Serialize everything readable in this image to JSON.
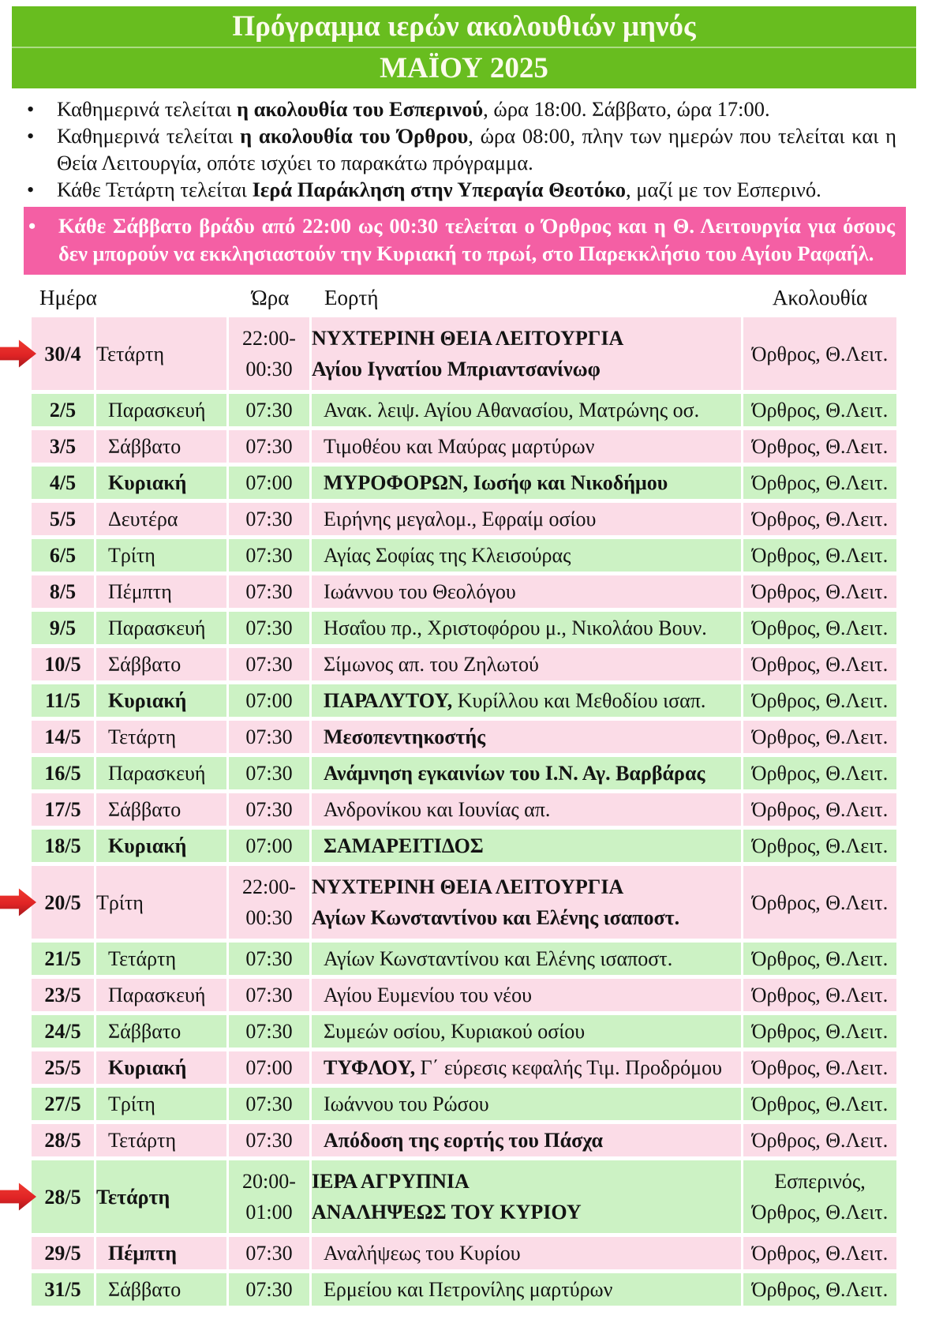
{
  "bullet_char": "•",
  "colors": {
    "header_green": "#68bd1f",
    "banner_pink": "#f45fa4",
    "row_pink": "#fbdce7",
    "row_green": "#ccf2c4",
    "arrow_red": "#e02425"
  },
  "title": {
    "line1": "Πρόγραμμα ιερών ακολουθιών μηνός",
    "line2": "ΜΑΪΟΥ 2025"
  },
  "notes": [
    {
      "style": "plain",
      "segments": [
        {
          "t": "Καθημερινά τελείται ",
          "b": false
        },
        {
          "t": "η ακολουθία του Εσπερινού",
          "b": true
        },
        {
          "t": ", ώρα 18:00. Σάββατο, ώρα 17:00.",
          "b": false
        }
      ]
    },
    {
      "style": "plain",
      "segments": [
        {
          "t": "Καθημερινά τελείται ",
          "b": false
        },
        {
          "t": "η ακολουθία του Όρθρου",
          "b": true
        },
        {
          "t": ", ώρα 08:00, πλην των ημερών που τελείται και η Θεία Λειτουργία, οπότε ισχύει το παρακάτω πρόγραμμα.",
          "b": false
        }
      ]
    },
    {
      "style": "plain",
      "segments": [
        {
          "t": "Κάθε Τετάρτη τελείται ",
          "b": false
        },
        {
          "t": "Ιερά Παράκληση στην Υπεραγία Θεοτόκο",
          "b": true
        },
        {
          "t": ", μαζί με τον Εσπερινό.",
          "b": false
        }
      ]
    },
    {
      "style": "highlight",
      "segments": [
        {
          "t": "Κάθε Σάββατο βράδυ από 22:00 ως 00:30 τελείται ο Όρθρος και η Θ. Λειτουργία για όσους δεν μπορούν να εκκλησιαστούν την Κυριακή το πρωί, στο Παρεκκλήσιο του Αγίου Ραφαήλ.",
          "b": true
        }
      ]
    }
  ],
  "table": {
    "headers": [
      "Ημέρα",
      "Ώρα",
      "Εορτή",
      "Ακολουθία"
    ],
    "rows": [
      {
        "date": "30/4",
        "day": "Τετάρτη",
        "day_bold": false,
        "time": [
          "22:00-",
          "00:30"
        ],
        "feast": [
          [
            {
              "t": "ΝΥΧΤΕΡΙΝΗ ΘΕΙΑ ΛΕΙΤΟΥΡΓΙΑ",
              "b": true
            }
          ],
          [
            {
              "t": "Αγίου Ιγνατίου Μπριαντσανίνωφ",
              "b": true
            }
          ]
        ],
        "service": [
          "Όρθρος, Θ.Λειτ."
        ],
        "bg": "pink",
        "arrow": true
      },
      {
        "date": "2/5",
        "day": "Παρασκευή",
        "day_bold": false,
        "time": [
          "07:30"
        ],
        "feast": [
          [
            {
              "t": "Ανακ. λειψ. Αγίου Αθανασίου, Ματρώνης οσ.",
              "b": false
            }
          ]
        ],
        "service": [
          "Όρθρος, Θ.Λειτ."
        ],
        "bg": "green",
        "arrow": false
      },
      {
        "date": "3/5",
        "day": "Σάββατο",
        "day_bold": false,
        "time": [
          "07:30"
        ],
        "feast": [
          [
            {
              "t": "Τιμοθέου και Μαύρας μαρτύρων",
              "b": false
            }
          ]
        ],
        "service": [
          "Όρθρος, Θ.Λειτ."
        ],
        "bg": "pink",
        "arrow": false
      },
      {
        "date": "4/5",
        "day": "Κυριακή",
        "day_bold": true,
        "time": [
          "07:00"
        ],
        "feast": [
          [
            {
              "t": "ΜΥΡΟΦΟΡΩΝ, Ιωσήφ και Νικοδήμου",
              "b": true
            }
          ]
        ],
        "service": [
          "Όρθρος, Θ.Λειτ."
        ],
        "bg": "green",
        "arrow": false
      },
      {
        "date": "5/5",
        "day": "Δευτέρα",
        "day_bold": false,
        "time": [
          "07:30"
        ],
        "feast": [
          [
            {
              "t": "Ειρήνης μεγαλομ., Εφραίμ οσίου",
              "b": false
            }
          ]
        ],
        "service": [
          "Όρθρος, Θ.Λειτ."
        ],
        "bg": "pink",
        "arrow": false
      },
      {
        "date": "6/5",
        "day": "Τρίτη",
        "day_bold": false,
        "time": [
          "07:30"
        ],
        "feast": [
          [
            {
              "t": "Αγίας Σοφίας της Κλεισούρας",
              "b": false
            }
          ]
        ],
        "service": [
          "Όρθρος, Θ.Λειτ."
        ],
        "bg": "green",
        "arrow": false
      },
      {
        "date": "8/5",
        "day": "Πέμπτη",
        "day_bold": false,
        "time": [
          "07:30"
        ],
        "feast": [
          [
            {
              "t": "Ιωάννου του Θεολόγου",
              "b": false
            }
          ]
        ],
        "service": [
          "Όρθρος, Θ.Λειτ."
        ],
        "bg": "pink",
        "arrow": false
      },
      {
        "date": "9/5",
        "day": "Παρασκευή",
        "day_bold": false,
        "time": [
          "07:30"
        ],
        "feast": [
          [
            {
              "t": "Ησαΐου πρ., Χριστοφόρου μ., Νικολάου Βουν.",
              "b": false
            }
          ]
        ],
        "service": [
          "Όρθρος, Θ.Λειτ."
        ],
        "bg": "green",
        "arrow": false
      },
      {
        "date": "10/5",
        "day": "Σάββατο",
        "day_bold": false,
        "time": [
          "07:30"
        ],
        "feast": [
          [
            {
              "t": "Σίμωνος απ. του Ζηλωτού",
              "b": false
            }
          ]
        ],
        "service": [
          "Όρθρος, Θ.Λειτ."
        ],
        "bg": "pink",
        "arrow": false
      },
      {
        "date": "11/5",
        "day": "Κυριακή",
        "day_bold": true,
        "time": [
          "07:00"
        ],
        "feast": [
          [
            {
              "t": "ΠΑΡΑΛΥΤΟΥ,",
              "b": true
            },
            {
              "t": " Κυρίλλου και Μεθοδίου ισαπ.",
              "b": false
            }
          ]
        ],
        "service": [
          "Όρθρος, Θ.Λειτ."
        ],
        "bg": "green",
        "arrow": false
      },
      {
        "date": "14/5",
        "day": "Τετάρτη",
        "day_bold": false,
        "time": [
          "07:30"
        ],
        "feast": [
          [
            {
              "t": "Μεσοπεντηκοστής",
              "b": true
            }
          ]
        ],
        "service": [
          "Όρθρος, Θ.Λειτ."
        ],
        "bg": "pink",
        "arrow": false
      },
      {
        "date": "16/5",
        "day": "Παρασκευή",
        "day_bold": false,
        "time": [
          "07:30"
        ],
        "feast": [
          [
            {
              "t": "Ανάμνηση εγκαινίων του Ι.Ν. Αγ. Βαρβάρας",
              "b": true
            }
          ]
        ],
        "service": [
          "Όρθρος, Θ.Λειτ."
        ],
        "bg": "green",
        "arrow": false
      },
      {
        "date": "17/5",
        "day": "Σάββατο",
        "day_bold": false,
        "time": [
          "07:30"
        ],
        "feast": [
          [
            {
              "t": "Ανδρονίκου και Ιουνίας απ.",
              "b": false
            }
          ]
        ],
        "service": [
          "Όρθρος, Θ.Λειτ."
        ],
        "bg": "pink",
        "arrow": false
      },
      {
        "date": "18/5",
        "day": "Κυριακή",
        "day_bold": true,
        "time": [
          "07:00"
        ],
        "feast": [
          [
            {
              "t": "ΣΑΜΑΡΕΙΤΙΔΟΣ",
              "b": true
            }
          ]
        ],
        "service": [
          "Όρθρος, Θ.Λειτ."
        ],
        "bg": "green",
        "arrow": false
      },
      {
        "date": "20/5",
        "day": "Τρίτη",
        "day_bold": false,
        "time": [
          "22:00-",
          "00:30"
        ],
        "feast": [
          [
            {
              "t": "ΝΥΧΤΕΡΙΝΗ ΘΕΙΑ ΛΕΙΤΟΥΡΓΙΑ",
              "b": true
            }
          ],
          [
            {
              "t": "Αγίων Κωνσταντίνου και Ελένης ισαποστ.",
              "b": true
            }
          ]
        ],
        "service": [
          "Όρθρος, Θ.Λειτ."
        ],
        "bg": "pink",
        "arrow": true
      },
      {
        "date": "21/5",
        "day": "Τετάρτη",
        "day_bold": false,
        "time": [
          "07:30"
        ],
        "feast": [
          [
            {
              "t": "Αγίων Κωνσταντίνου και Ελένης ισαποστ.",
              "b": false
            }
          ]
        ],
        "service": [
          "Όρθρος, Θ.Λειτ."
        ],
        "bg": "green",
        "arrow": false
      },
      {
        "date": "23/5",
        "day": "Παρασκευή",
        "day_bold": false,
        "time": [
          "07:30"
        ],
        "feast": [
          [
            {
              "t": "Αγίου Ευμενίου του νέου",
              "b": false
            }
          ]
        ],
        "service": [
          "Όρθρος, Θ.Λειτ."
        ],
        "bg": "pink",
        "arrow": false
      },
      {
        "date": "24/5",
        "day": "Σάββατο",
        "day_bold": false,
        "time": [
          "07:30"
        ],
        "feast": [
          [
            {
              "t": "Συμεών οσίου, Κυριακού οσίου",
              "b": false
            }
          ]
        ],
        "service": [
          "Όρθρος, Θ.Λειτ."
        ],
        "bg": "green",
        "arrow": false
      },
      {
        "date": "25/5",
        "day": "Κυριακή",
        "day_bold": true,
        "time": [
          "07:00"
        ],
        "feast": [
          [
            {
              "t": "ΤΥΦΛΟΥ,",
              "b": true
            },
            {
              "t": " Γ΄ εύρεσις κεφαλής Τιμ. Προδρόμου",
              "b": false
            }
          ]
        ],
        "service": [
          "Όρθρος, Θ.Λειτ."
        ],
        "bg": "pink",
        "arrow": false
      },
      {
        "date": "27/5",
        "day": "Τρίτη",
        "day_bold": false,
        "time": [
          "07:30"
        ],
        "feast": [
          [
            {
              "t": "Ιωάννου του Ρώσου",
              "b": false
            }
          ]
        ],
        "service": [
          "Όρθρος, Θ.Λειτ."
        ],
        "bg": "green",
        "arrow": false
      },
      {
        "date": "28/5",
        "day": "Τετάρτη",
        "day_bold": false,
        "time": [
          "07:30"
        ],
        "feast": [
          [
            {
              "t": "Απόδοση της εορτής του Πάσχα",
              "b": true
            }
          ]
        ],
        "service": [
          "Όρθρος, Θ.Λειτ."
        ],
        "bg": "pink",
        "arrow": false
      },
      {
        "date": "28/5",
        "day": "Τετάρτη",
        "day_bold": true,
        "time": [
          "20:00-",
          "01:00"
        ],
        "feast": [
          [
            {
              "t": "ΙΕΡΑ ΑΓΡΥΠΝΙΑ",
              "b": true
            }
          ],
          [
            {
              "t": "ΑΝΑΛΗΨΕΩΣ ΤΟΥ ΚΥΡΙΟΥ",
              "b": true
            }
          ]
        ],
        "service": [
          "Εσπερινός,",
          "Όρθρος, Θ.Λειτ."
        ],
        "bg": "green",
        "arrow": true
      },
      {
        "date": "29/5",
        "day": "Πέμπτη",
        "day_bold": true,
        "time": [
          "07:30"
        ],
        "feast": [
          [
            {
              "t": "Αναλήψεως του Κυρίου",
              "b": false
            }
          ]
        ],
        "service": [
          "Όρθρος, Θ.Λειτ."
        ],
        "bg": "pink",
        "arrow": false
      },
      {
        "date": "31/5",
        "day": "Σάββατο",
        "day_bold": false,
        "time": [
          "07:30"
        ],
        "feast": [
          [
            {
              "t": "Ερμείου και Πετρονίλης μαρτύρων",
              "b": false
            }
          ]
        ],
        "service": [
          "Όρθρος, Θ.Λειτ."
        ],
        "bg": "green",
        "arrow": false
      }
    ]
  }
}
